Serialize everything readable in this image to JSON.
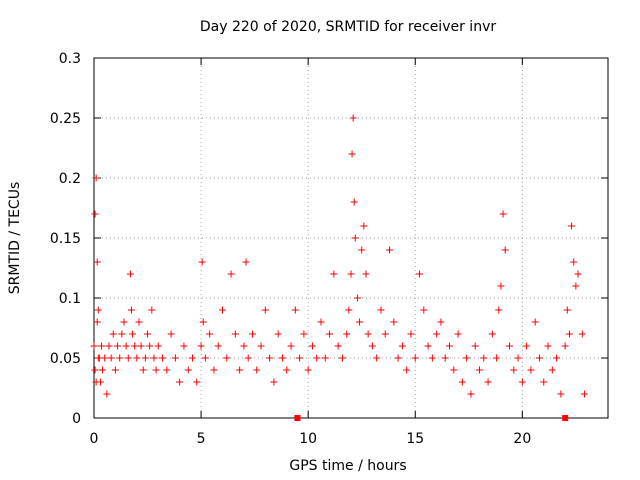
{
  "chart_data": {
    "type": "scatter",
    "title": "Day 220 of 2020, SRMTID for receiver invr",
    "xlabel": "GPS time / hours",
    "ylabel": "SRMTID / TECUs",
    "xlim": [
      0,
      24
    ],
    "ylim": [
      0,
      0.3
    ],
    "xticks": [
      0,
      5,
      10,
      15,
      20
    ],
    "xtick_labels": [
      "0",
      "5",
      "10",
      "15",
      "20"
    ],
    "yticks": [
      0,
      0.05,
      0.1,
      0.15,
      0.2,
      0.25,
      0.3
    ],
    "ytick_labels": [
      "0",
      "0.05",
      "0.1",
      "0.15",
      "0.2",
      "0.25",
      "0.3"
    ],
    "grid": true,
    "marker": "+",
    "color": "#ff0000",
    "series": [
      {
        "x": [
          0.0,
          0.05,
          0.1,
          0.15,
          0.2,
          0.25,
          0.05,
          0.1,
          0.15,
          0.2,
          0.3,
          0.35,
          0.4,
          0.5,
          0.6,
          0.7,
          0.8,
          0.9,
          1.0,
          1.1,
          1.2,
          1.3,
          1.4,
          1.5,
          1.6,
          1.7,
          1.75,
          1.8,
          1.9,
          2.0,
          2.1,
          2.2,
          2.3,
          2.4,
          2.5,
          2.6,
          2.7,
          2.8,
          2.9,
          3.0,
          3.2,
          3.4,
          3.6,
          3.8,
          4.0,
          4.2,
          4.4,
          4.6,
          4.8,
          5.0,
          5.05,
          5.1,
          5.2,
          5.4,
          5.6,
          5.8,
          6.0,
          6.2,
          6.4,
          6.6,
          6.8,
          7.0,
          7.1,
          7.2,
          7.4,
          7.6,
          7.8,
          8.0,
          8.2,
          8.4,
          8.6,
          8.8,
          9.0,
          9.2,
          9.4,
          9.6,
          9.8,
          10.0,
          10.2,
          10.4,
          10.6,
          10.8,
          11.0,
          11.2,
          11.4,
          11.6,
          11.8,
          11.9,
          12.0,
          12.05,
          12.1,
          12.15,
          12.2,
          12.3,
          12.4,
          12.5,
          12.6,
          12.7,
          12.8,
          13.0,
          13.2,
          13.4,
          13.6,
          13.8,
          14.0,
          14.2,
          14.4,
          14.6,
          14.8,
          15.0,
          15.2,
          15.4,
          15.6,
          15.8,
          16.0,
          16.2,
          16.4,
          16.6,
          16.8,
          17.0,
          17.2,
          17.4,
          17.6,
          17.8,
          18.0,
          18.2,
          18.4,
          18.6,
          18.8,
          18.9,
          19.0,
          19.1,
          19.2,
          19.4,
          19.6,
          19.8,
          20.0,
          20.2,
          20.4,
          20.6,
          20.8,
          21.0,
          21.2,
          21.4,
          21.6,
          21.8,
          22.0,
          22.1,
          22.2,
          22.3,
          22.4,
          22.5,
          22.6,
          22.8,
          22.9
        ],
        "y": [
          0.06,
          0.17,
          0.2,
          0.13,
          0.09,
          0.05,
          0.04,
          0.03,
          0.08,
          0.05,
          0.03,
          0.06,
          0.04,
          0.05,
          0.02,
          0.06,
          0.05,
          0.07,
          0.04,
          0.06,
          0.05,
          0.07,
          0.08,
          0.06,
          0.05,
          0.12,
          0.09,
          0.07,
          0.06,
          0.05,
          0.08,
          0.06,
          0.04,
          0.05,
          0.07,
          0.06,
          0.09,
          0.05,
          0.04,
          0.06,
          0.05,
          0.04,
          0.07,
          0.05,
          0.03,
          0.06,
          0.04,
          0.05,
          0.03,
          0.06,
          0.13,
          0.08,
          0.05,
          0.07,
          0.04,
          0.06,
          0.09,
          0.05,
          0.12,
          0.07,
          0.04,
          0.06,
          0.13,
          0.05,
          0.07,
          0.04,
          0.06,
          0.09,
          0.05,
          0.03,
          0.07,
          0.05,
          0.04,
          0.06,
          0.09,
          0.05,
          0.07,
          0.04,
          0.06,
          0.05,
          0.08,
          0.05,
          0.07,
          0.12,
          0.06,
          0.05,
          0.07,
          0.09,
          0.12,
          0.22,
          0.25,
          0.18,
          0.15,
          0.1,
          0.08,
          0.14,
          0.16,
          0.12,
          0.07,
          0.06,
          0.05,
          0.09,
          0.07,
          0.14,
          0.08,
          0.05,
          0.06,
          0.04,
          0.07,
          0.05,
          0.12,
          0.09,
          0.06,
          0.05,
          0.07,
          0.08,
          0.05,
          0.06,
          0.04,
          0.07,
          0.03,
          0.05,
          0.02,
          0.06,
          0.04,
          0.05,
          0.03,
          0.07,
          0.05,
          0.09,
          0.11,
          0.17,
          0.14,
          0.06,
          0.04,
          0.05,
          0.03,
          0.06,
          0.04,
          0.08,
          0.05,
          0.03,
          0.06,
          0.04,
          0.05,
          0.02,
          0.06,
          0.09,
          0.07,
          0.16,
          0.13,
          0.11,
          0.12,
          0.07,
          0.02
        ]
      }
    ],
    "axis_markers": [
      9.5,
      22.0
    ]
  }
}
